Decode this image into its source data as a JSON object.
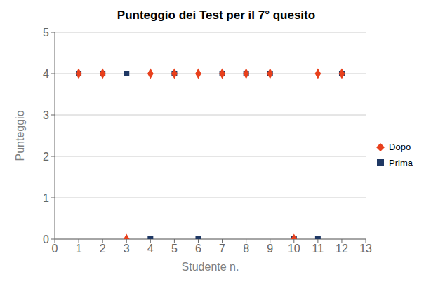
{
  "chart_data": {
    "type": "scatter",
    "title": "Punteggio dei Test per il 7° quesito",
    "xlabel": "Studente n.",
    "ylabel": "Punteggio",
    "xlim": [
      0,
      13
    ],
    "ylim": [
      0,
      5
    ],
    "xticks": [
      0,
      1,
      2,
      3,
      4,
      5,
      6,
      7,
      8,
      9,
      10,
      11,
      12,
      13
    ],
    "yticks": [
      0,
      1,
      2,
      3,
      4,
      5
    ],
    "grid": "y",
    "legend": "right",
    "x": [
      1,
      2,
      3,
      4,
      5,
      6,
      7,
      8,
      9,
      10,
      11,
      12
    ],
    "series": [
      {
        "name": "Prima",
        "color": "#1F3864",
        "marker": "square",
        "values": [
          4,
          4,
          4,
          0,
          4,
          0,
          4,
          4,
          4,
          0,
          0,
          4
        ]
      },
      {
        "name": "Dopo",
        "color": "#E8401C",
        "marker": "diamond",
        "values": [
          4,
          4,
          0,
          4,
          4,
          4,
          4,
          4,
          4,
          0,
          4,
          4
        ]
      }
    ]
  }
}
